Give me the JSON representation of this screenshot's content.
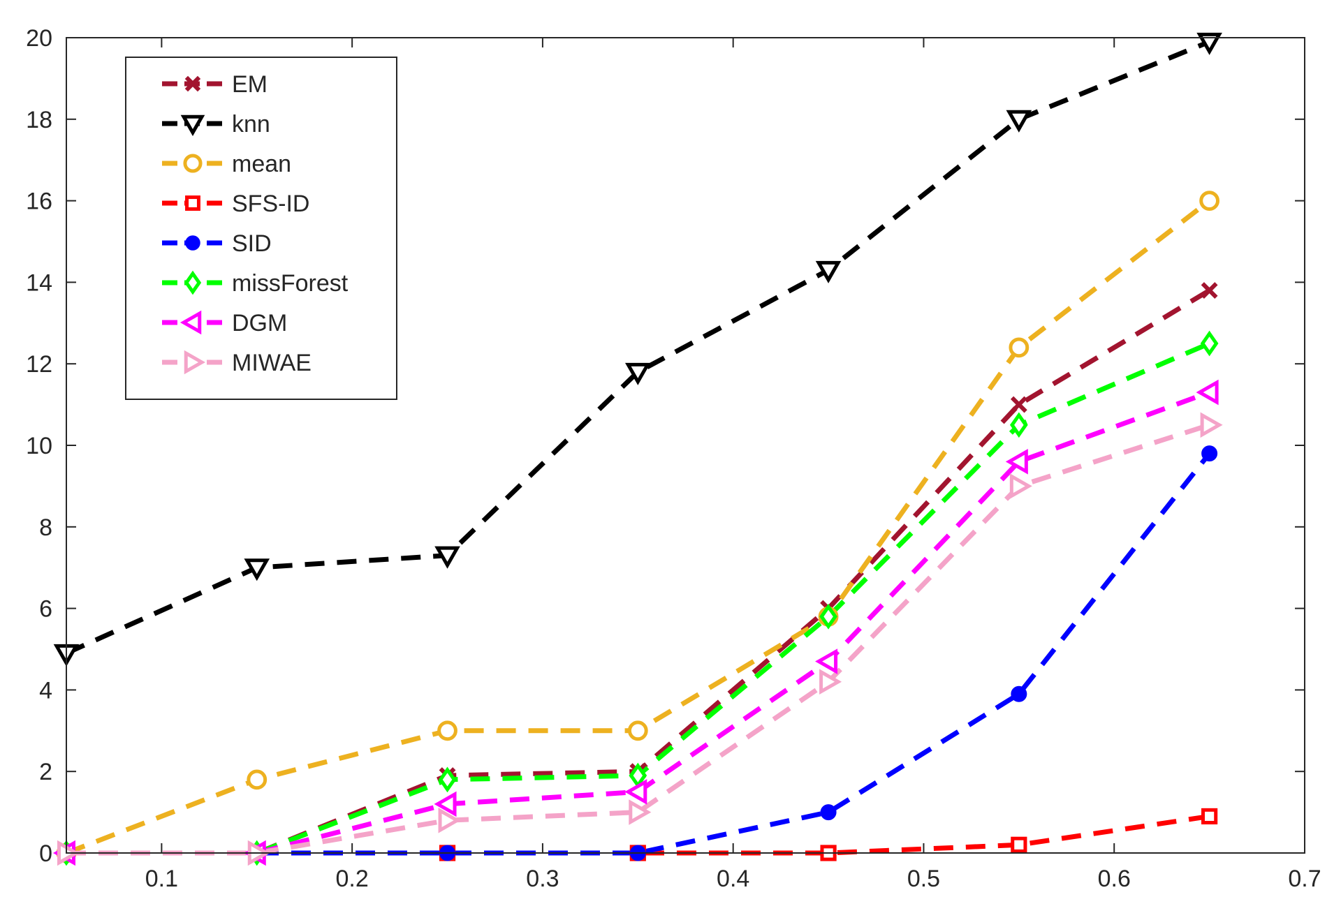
{
  "chart_data": {
    "type": "line",
    "title": "",
    "xlabel": "",
    "ylabel": "",
    "xlim": [
      0.05,
      0.7
    ],
    "ylim": [
      0,
      20
    ],
    "x_ticks": [
      0.1,
      0.2,
      0.3,
      0.4,
      0.5,
      0.6,
      0.7
    ],
    "x_tick_labels": [
      "0.1",
      "0.2",
      "0.3",
      "0.4",
      "0.5",
      "0.6",
      "0.7"
    ],
    "y_ticks": [
      0,
      2,
      4,
      6,
      8,
      10,
      12,
      14,
      16,
      18,
      20
    ],
    "y_tick_labels": [
      "0",
      "2",
      "4",
      "6",
      "8",
      "10",
      "12",
      "14",
      "16",
      "18",
      "20"
    ],
    "grid": false,
    "legend_position": "top-left",
    "x": [
      0.05,
      0.15,
      0.25,
      0.35,
      0.45,
      0.55,
      0.65
    ],
    "series": [
      {
        "name": "EM",
        "color": "#a2142f",
        "marker": "x",
        "values": [
          0,
          0,
          1.9,
          2.0,
          6.0,
          11.0,
          13.8
        ]
      },
      {
        "name": "knn",
        "color": "#000000",
        "marker": "triangle-down",
        "values": [
          4.9,
          7.0,
          7.3,
          11.8,
          14.3,
          18.0,
          19.9
        ]
      },
      {
        "name": "mean",
        "color": "#edb120",
        "marker": "circle",
        "values": [
          0,
          1.8,
          3.0,
          3.0,
          5.8,
          12.4,
          16.0
        ]
      },
      {
        "name": "SFS-ID",
        "color": "#ff0000",
        "marker": "square",
        "values": [
          0,
          0,
          0,
          0,
          0,
          0.2,
          0.9
        ]
      },
      {
        "name": "SID",
        "color": "#0000ff",
        "marker": "filled-circle",
        "values": [
          0,
          0,
          0,
          0,
          1.0,
          3.9,
          9.8
        ]
      },
      {
        "name": "missForest",
        "color": "#00ff00",
        "marker": "diamond",
        "values": [
          0,
          0,
          1.8,
          1.9,
          5.8,
          10.5,
          12.5
        ]
      },
      {
        "name": "DGM",
        "color": "#ff00ff",
        "marker": "triangle-left",
        "values": [
          0,
          0,
          1.2,
          1.5,
          4.7,
          9.6,
          11.3
        ]
      },
      {
        "name": "MIWAE",
        "color": "#f4a3c8",
        "marker": "triangle-right",
        "values": [
          0,
          0,
          0.8,
          1.0,
          4.2,
          9.0,
          10.5
        ]
      }
    ]
  }
}
